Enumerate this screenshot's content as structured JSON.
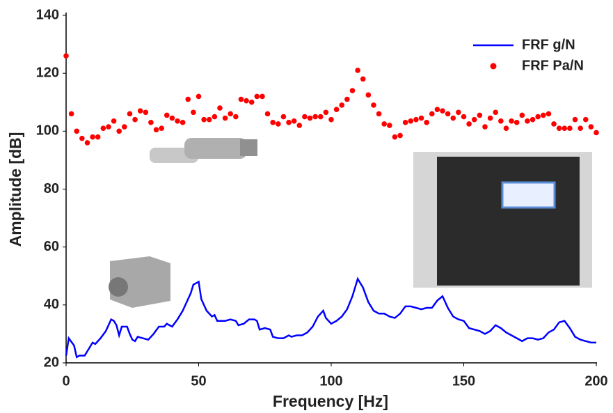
{
  "chart_data": {
    "type": "line",
    "xlabel": "Frequency [Hz]",
    "ylabel": "Amplitude [dB]",
    "xlim": [
      0,
      200
    ],
    "xticks": [
      0,
      50,
      100,
      150,
      200
    ],
    "ylim": [
      20,
      140
    ],
    "yticks": [
      20,
      40,
      60,
      80,
      100,
      120,
      140
    ],
    "grid": false,
    "legend": "upper right",
    "series": [
      {
        "name": "FRF g/N",
        "color": "#0000ff",
        "marker": "line",
        "x": [
          0,
          1,
          3,
          4,
          5,
          7,
          8,
          10,
          11,
          13,
          15,
          17,
          18,
          19,
          20,
          21,
          23,
          24,
          25,
          26,
          27,
          29,
          31,
          33,
          35,
          37,
          38,
          40,
          42,
          44,
          46,
          47,
          48,
          50,
          51,
          53,
          55,
          56,
          57,
          60,
          62,
          64,
          65,
          67,
          69,
          71,
          72,
          73,
          75,
          77,
          78,
          80,
          82,
          84,
          85,
          87,
          89,
          91,
          93,
          95,
          97,
          98,
          100,
          102,
          104,
          106,
          108,
          110,
          112,
          114,
          116,
          118,
          120,
          122,
          124,
          126,
          128,
          130,
          132,
          134,
          136,
          138,
          140,
          142,
          144,
          146,
          148,
          150,
          152,
          154,
          156,
          158,
          160,
          162,
          164,
          166,
          168,
          170,
          172,
          174,
          176,
          178,
          180,
          182,
          184,
          186,
          188,
          190,
          192,
          194,
          196,
          198,
          200
        ],
        "values": [
          22.5,
          28.5,
          26,
          22,
          22.5,
          22.5,
          24,
          27,
          26.5,
          28.5,
          31,
          35,
          34.5,
          33,
          29.5,
          32.5,
          32.5,
          30,
          28,
          27.5,
          29,
          28.5,
          28,
          30,
          32.5,
          32.5,
          33.5,
          32.5,
          35,
          38,
          42,
          44,
          47,
          48,
          42,
          38,
          36,
          36.5,
          34.5,
          34.5,
          35,
          34.5,
          33,
          33.5,
          35,
          35,
          34.5,
          31.5,
          32,
          31.5,
          29,
          28.5,
          28.5,
          29.5,
          29,
          29.5,
          29.5,
          30.5,
          32.5,
          36,
          38,
          35.5,
          33.5,
          34.5,
          36,
          38.5,
          43,
          49,
          46,
          41,
          38,
          37,
          37,
          36,
          35.5,
          37,
          39.5,
          39.5,
          39,
          38.5,
          39,
          39,
          41.5,
          43,
          39,
          36,
          35,
          34.5,
          32,
          31.5,
          31,
          30,
          31,
          33,
          32,
          30.5,
          29.5,
          28.5,
          27.5,
          28.5,
          28.5,
          28,
          28.5,
          30.5,
          31.5,
          34,
          34.5,
          32,
          29,
          28,
          27.5,
          27,
          27
        ]
      },
      {
        "name": "FRF Pa/N",
        "color": "#ff0000",
        "marker": "dot",
        "x": [
          0,
          2,
          4,
          6,
          8,
          10,
          12,
          14,
          16,
          18,
          20,
          22,
          24,
          26,
          28,
          30,
          32,
          34,
          36,
          38,
          40,
          42,
          44,
          46,
          48,
          50,
          52,
          54,
          56,
          58,
          60,
          62,
          64,
          66,
          68,
          70,
          72,
          74,
          76,
          78,
          80,
          82,
          84,
          86,
          88,
          90,
          92,
          94,
          96,
          98,
          100,
          102,
          104,
          106,
          108,
          110,
          112,
          114,
          116,
          118,
          120,
          122,
          124,
          126,
          128,
          130,
          132,
          134,
          136,
          138,
          140,
          142,
          144,
          146,
          148,
          150,
          152,
          154,
          156,
          158,
          160,
          162,
          164,
          166,
          168,
          170,
          172,
          174,
          176,
          178,
          180,
          182,
          184,
          186,
          188,
          190,
          192,
          194,
          196,
          198,
          200
        ],
        "values": [
          126,
          106,
          100,
          97.5,
          96,
          98,
          98,
          101,
          101.5,
          103.5,
          100,
          101.5,
          106,
          104,
          107,
          106.5,
          103,
          100.5,
          101,
          105.5,
          104.5,
          103.5,
          103,
          111,
          106.5,
          112,
          104,
          104,
          105,
          108,
          104.5,
          106,
          105,
          111,
          110.5,
          110,
          112,
          112,
          106,
          103,
          102.5,
          105,
          103,
          103.5,
          102,
          105,
          104.5,
          105,
          105,
          106.5,
          104,
          107.5,
          109,
          111,
          114,
          121,
          118,
          112.5,
          109,
          106,
          102.5,
          102,
          98,
          98.5,
          103,
          103.5,
          104,
          104.5,
          103,
          106,
          107.5,
          107,
          106,
          104.5,
          106.5,
          105,
          102.5,
          104,
          105.5,
          101.5,
          104.5,
          106.5,
          103.5,
          101,
          103.5,
          103,
          105.5,
          103.5,
          104,
          105,
          105.5,
          106,
          102.5,
          101,
          101,
          101,
          104,
          101,
          104,
          101.5,
          99.5
        ]
      }
    ]
  }
}
